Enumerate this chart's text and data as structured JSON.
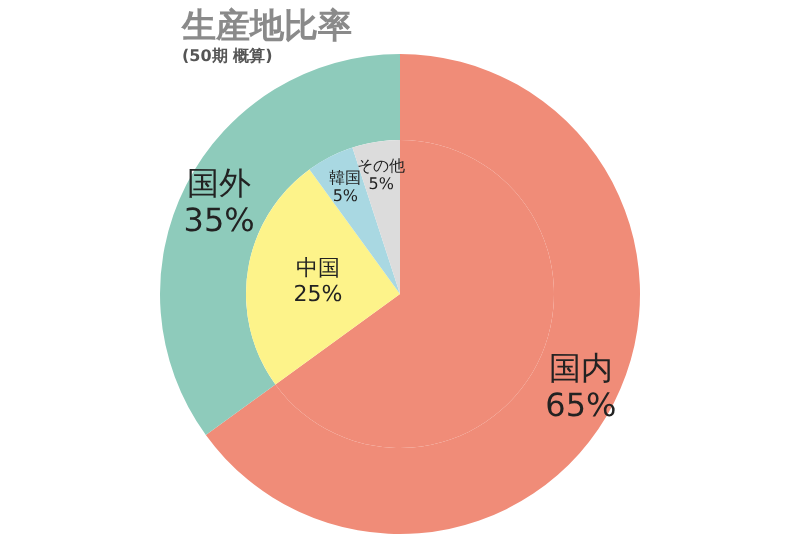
{
  "chart_data": [
    {
      "type": "donut",
      "title": "生産地比率",
      "subtitle": "(50期 概算)",
      "legend": false,
      "categories": [
        "国内",
        "国外"
      ],
      "values": [
        65,
        35
      ],
      "colors": [
        "#f08c78",
        "#8ecbbb"
      ],
      "value_labels": [
        "65%",
        "35%"
      ]
    },
    {
      "type": "pie",
      "legend": false,
      "categories": [
        null,
        "中国",
        "韓国",
        "その他"
      ],
      "values": [
        65,
        25,
        5,
        5
      ],
      "colors": [
        "#f08c78",
        "#fdf38a",
        "#a9d8e2",
        "#dcdcdc"
      ],
      "value_labels": [
        null,
        "25%",
        "5%",
        "5%"
      ]
    }
  ]
}
